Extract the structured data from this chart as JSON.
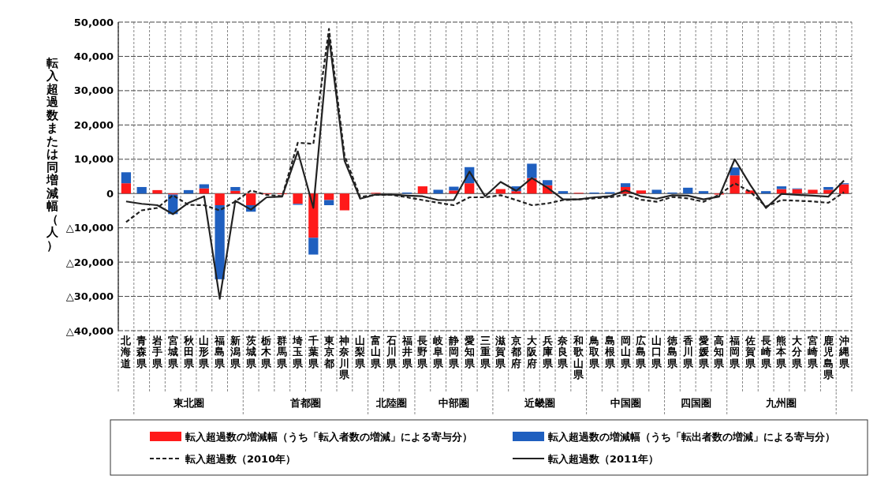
{
  "chart_data": {
    "type": "bar",
    "stacked": true,
    "grid": true,
    "legend": "bottom",
    "ylabel": "転入超過数または同増減幅（人）",
    "ylim": [
      -40000,
      50000
    ],
    "yticks": [
      {
        "value": -40000,
        "label": "△40,000"
      },
      {
        "value": -30000,
        "label": "△30,000"
      },
      {
        "value": -20000,
        "label": "△20,000"
      },
      {
        "value": -10000,
        "label": "△10,000"
      },
      {
        "value": 0,
        "label": "0"
      },
      {
        "value": 10000,
        "label": "10,000"
      },
      {
        "value": 20000,
        "label": "20,000"
      },
      {
        "value": 30000,
        "label": "30,000"
      },
      {
        "value": 40000,
        "label": "40,000"
      },
      {
        "value": 50000,
        "label": "50,000"
      }
    ],
    "categories": [
      "北海道",
      "青森県",
      "岩手県",
      "宮城県",
      "秋田県",
      "山形県",
      "福島県",
      "新潟県",
      "茨城県",
      "栃木県",
      "群馬県",
      "埼玉県",
      "千葉県",
      "東京都",
      "神奈川県",
      "山梨県",
      "富山県",
      "石川県",
      "福井県",
      "長野県",
      "岐阜県",
      "静岡県",
      "愛知県",
      "三重県",
      "滋賀県",
      "京都府",
      "大阪府",
      "兵庫県",
      "奈良県",
      "和歌山県",
      "鳥取県",
      "島根県",
      "岡山県",
      "広島県",
      "山口県",
      "徳島県",
      "香川県",
      "愛媛県",
      "高知県",
      "福岡県",
      "佐賀県",
      "長崎県",
      "熊本県",
      "大分県",
      "宮崎県",
      "鹿児島県",
      "沖縄県"
    ],
    "series": [
      {
        "name": "転入超過数の増減幅（うち「転入者数の増減」による寄与分）",
        "color": "#ff1a1a",
        "values": [
          3000,
          0,
          1000,
          -300,
          0,
          1500,
          -3400,
          800,
          -3400,
          -200,
          -200,
          -3000,
          -12900,
          -1900,
          -4900,
          0,
          200,
          0,
          0,
          2100,
          0,
          900,
          3000,
          0,
          1300,
          700,
          4500,
          2400,
          0,
          200,
          0,
          0,
          1900,
          900,
          0,
          0,
          0,
          0,
          -300,
          5300,
          900,
          0,
          1300,
          1300,
          1100,
          1100,
          2700
        ]
      },
      {
        "name": "転入超過数の増減幅（うち「転出者数の増減」による寄与分）",
        "color": "#1f5fbf",
        "values": [
          3200,
          1900,
          0,
          -5700,
          1000,
          1200,
          -21600,
          1100,
          -1900,
          0,
          0,
          -300,
          -4900,
          -1500,
          0,
          0,
          0,
          0,
          300,
          0,
          1100,
          1100,
          4700,
          null,
          0,
          1400,
          4200,
          1500,
          700,
          0,
          300,
          400,
          1100,
          0,
          1100,
          300,
          1700,
          700,
          0,
          2300,
          0,
          700,
          800,
          200,
          null,
          800,
          300
        ]
      },
      {
        "name": "転入超過数（2010年）",
        "type": "line",
        "color": "#222222",
        "line_style": "dashed",
        "values": [
          -8300,
          -4900,
          -4200,
          -500,
          -3300,
          -3400,
          -4900,
          -2300,
          900,
          -400,
          -800,
          14800,
          14500,
          48000,
          11000,
          -1000,
          -400,
          -400,
          -1100,
          -1900,
          -2700,
          -3400,
          -1100,
          -1100,
          -500,
          -1900,
          -3400,
          -2900,
          -1900,
          -1700,
          -1400,
          -1100,
          -400,
          -1800,
          -2400,
          -1000,
          -1400,
          -2400,
          -400,
          3000,
          500,
          -3800,
          -1900,
          -2100,
          -2300,
          -2700,
          400
        ]
      },
      {
        "name": "転入超過数（2011年）",
        "type": "line",
        "color": "#222222",
        "line_style": "solid",
        "values": [
          -2300,
          -3000,
          -3400,
          -6000,
          -2700,
          -800,
          -30700,
          -2100,
          -4700,
          -1100,
          -900,
          12300,
          -4200,
          45700,
          9500,
          -1500,
          -300,
          -300,
          -600,
          -800,
          -1900,
          -1900,
          6400,
          -800,
          3400,
          800,
          4500,
          1700,
          -1700,
          -1700,
          -1100,
          -800,
          900,
          -800,
          -1500,
          -500,
          -600,
          -1700,
          -900,
          10000,
          2500,
          -4200,
          -100,
          -400,
          -600,
          -900,
          3800
        ]
      }
    ],
    "annotations": [
      "東北圏",
      "首都圏",
      "北陸圏",
      "中部圏",
      "近畿圏",
      "中国圏",
      "四国圏",
      "九州圏"
    ]
  }
}
